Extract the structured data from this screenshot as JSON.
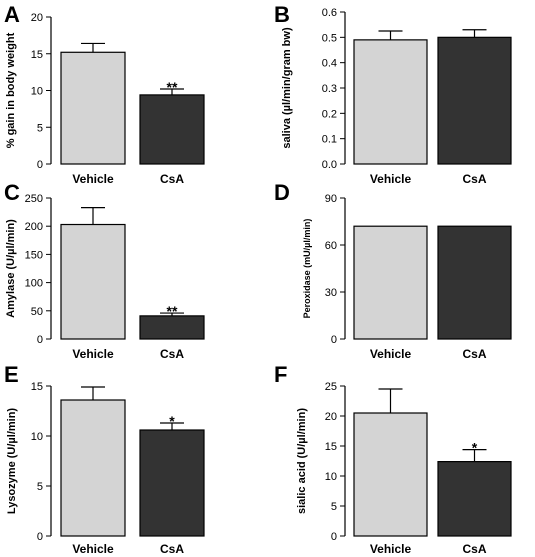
{
  "colors": {
    "vehicle": "#d4d4d4",
    "csa": "#333333",
    "stroke": "#000000"
  },
  "chart_data": [
    {
      "type": "bar",
      "panel": "A",
      "categories": [
        "Vehicle",
        "CsA"
      ],
      "values": [
        15.2,
        9.4
      ],
      "errors": [
        1.2,
        0.8
      ],
      "significance": [
        "",
        "**"
      ],
      "ylabel": "% gain in body weight",
      "ylim": [
        0,
        20
      ],
      "yticks": [
        0,
        5,
        10,
        15,
        20
      ],
      "grid": false
    },
    {
      "type": "bar",
      "panel": "B",
      "categories": [
        "Vehicle",
        "CsA"
      ],
      "values": [
        0.49,
        0.5
      ],
      "errors": [
        0.035,
        0.03
      ],
      "significance": [
        "",
        ""
      ],
      "ylabel": "saliva (µl/min/gram bw)",
      "ylim": [
        0,
        0.6
      ],
      "yticks": [
        0.0,
        0.1,
        0.2,
        0.3,
        0.4,
        0.5,
        0.6
      ],
      "grid": false
    },
    {
      "type": "bar",
      "panel": "C",
      "categories": [
        "Vehicle",
        "CsA"
      ],
      "values": [
        203,
        41
      ],
      "errors": [
        30,
        5
      ],
      "significance": [
        "",
        "**"
      ],
      "ylabel": "Amylase (U/µl/min)",
      "ylim": [
        0,
        250
      ],
      "yticks": [
        0,
        50,
        100,
        150,
        200,
        250
      ],
      "grid": false
    },
    {
      "type": "bar",
      "panel": "D",
      "categories": [
        "Vehicle",
        "CsA"
      ],
      "values": [
        72,
        72
      ],
      "errors": [
        0,
        0
      ],
      "significance": [
        "",
        ""
      ],
      "ylabel": "Peroxidase (mU/µl/min)",
      "ylim": [
        0,
        90
      ],
      "yticks": [
        0,
        30,
        60,
        90
      ],
      "grid": false
    },
    {
      "type": "bar",
      "panel": "E",
      "categories": [
        "Vehicle",
        "CsA"
      ],
      "values": [
        13.6,
        10.6
      ],
      "errors": [
        1.3,
        0.7
      ],
      "significance": [
        "",
        "*"
      ],
      "ylabel": "Lysozyme (U/µl/min)",
      "ylim": [
        0,
        15
      ],
      "yticks": [
        0,
        5,
        10,
        15
      ],
      "grid": false
    },
    {
      "type": "bar",
      "panel": "F",
      "categories": [
        "Vehicle",
        "CsA"
      ],
      "values": [
        20.5,
        12.4
      ],
      "errors": [
        4.0,
        2.0
      ],
      "significance": [
        "",
        "*"
      ],
      "ylabel": "sialic acid (U/µl/min)",
      "ylim": [
        0,
        25
      ],
      "yticks": [
        0,
        5,
        10,
        15,
        20,
        25
      ],
      "grid": false
    }
  ]
}
